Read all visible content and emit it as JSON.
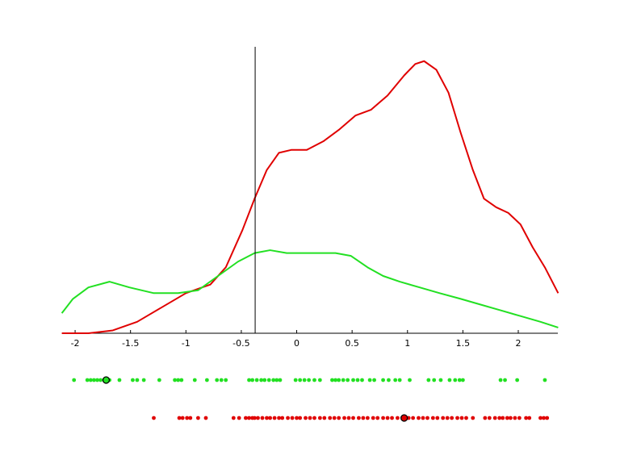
{
  "chart_data": {
    "type": "line",
    "xlim": [
      -2.117,
      2.357
    ],
    "ylim": [
      0,
      1
    ],
    "xticks": [
      -2,
      -1.5,
      -1,
      -0.5,
      0,
      0.5,
      1,
      1.5,
      2
    ],
    "vline": -0.375,
    "series": [
      {
        "color": "#e00000",
        "x": [
          -2.12,
          -1.88,
          -1.66,
          -1.44,
          -1.22,
          -1.0,
          -0.78,
          -0.64,
          -0.49,
          -0.38,
          -0.27,
          -0.16,
          -0.05,
          0.09,
          0.24,
          0.38,
          0.53,
          0.67,
          0.82,
          0.97,
          1.07,
          1.15,
          1.26,
          1.37,
          1.48,
          1.59,
          1.69,
          1.8,
          1.91,
          2.02,
          2.13,
          2.24,
          2.36
        ],
        "values": [
          0,
          0,
          0.01,
          0.04,
          0.09,
          0.14,
          0.17,
          0.23,
          0.36,
          0.47,
          0.57,
          0.63,
          0.64,
          0.64,
          0.67,
          0.71,
          0.76,
          0.78,
          0.83,
          0.9,
          0.94,
          0.95,
          0.92,
          0.84,
          0.7,
          0.57,
          0.47,
          0.44,
          0.42,
          0.38,
          0.3,
          0.23,
          0.14
        ]
      },
      {
        "color": "#22e022",
        "x": [
          -2.12,
          -2.02,
          -1.88,
          -1.69,
          -1.51,
          -1.29,
          -1.07,
          -0.89,
          -0.71,
          -0.53,
          -0.38,
          -0.24,
          -0.09,
          0.05,
          0.2,
          0.35,
          0.49,
          0.64,
          0.78,
          0.93,
          1.11,
          1.29,
          1.48,
          1.66,
          1.84,
          2.02,
          2.2,
          2.36
        ],
        "values": [
          0.07,
          0.12,
          0.16,
          0.18,
          0.16,
          0.14,
          0.14,
          0.15,
          0.2,
          0.25,
          0.28,
          0.29,
          0.28,
          0.28,
          0.28,
          0.28,
          0.27,
          0.23,
          0.2,
          0.18,
          0.16,
          0.14,
          0.12,
          0.1,
          0.08,
          0.06,
          0.04,
          0.02
        ]
      }
    ],
    "rug": [
      {
        "color": "#22e022",
        "highlight": -1.72,
        "values": [
          -2.01,
          -1.89,
          -1.86,
          -1.83,
          -1.8,
          -1.77,
          -1.69,
          -1.6,
          -1.48,
          -1.44,
          -1.38,
          -1.24,
          -1.1,
          -1.07,
          -1.04,
          -0.92,
          -0.81,
          -0.72,
          -0.68,
          -0.64,
          -0.43,
          -0.4,
          -0.36,
          -0.32,
          -0.29,
          -0.25,
          -0.21,
          -0.18,
          -0.15,
          -0.01,
          0.03,
          0.07,
          0.11,
          0.16,
          0.21,
          0.32,
          0.35,
          0.38,
          0.42,
          0.46,
          0.51,
          0.55,
          0.59,
          0.66,
          0.7,
          0.78,
          0.83,
          0.89,
          0.93,
          1.02,
          1.19,
          1.24,
          1.3,
          1.38,
          1.43,
          1.47,
          1.5,
          1.84,
          1.88,
          1.99,
          2.24
        ]
      },
      {
        "color": "#e00000",
        "highlight": 0.97,
        "values": [
          -1.29,
          -1.06,
          -1.03,
          -0.99,
          -0.96,
          -0.89,
          -0.82,
          -0.57,
          -0.52,
          -0.46,
          -0.43,
          -0.4,
          -0.38,
          -0.35,
          -0.31,
          -0.27,
          -0.24,
          -0.2,
          -0.16,
          -0.13,
          -0.08,
          -0.04,
          0.0,
          0.03,
          0.08,
          0.12,
          0.16,
          0.21,
          0.25,
          0.3,
          0.34,
          0.38,
          0.43,
          0.47,
          0.51,
          0.56,
          0.6,
          0.64,
          0.69,
          0.73,
          0.78,
          0.82,
          0.86,
          0.91,
          1.01,
          1.05,
          1.1,
          1.14,
          1.18,
          1.23,
          1.27,
          1.32,
          1.36,
          1.4,
          1.45,
          1.49,
          1.53,
          1.59,
          1.7,
          1.74,
          1.79,
          1.83,
          1.86,
          1.9,
          1.93,
          1.97,
          2.01,
          2.07,
          2.1,
          2.2,
          2.23,
          2.26
        ]
      }
    ]
  }
}
